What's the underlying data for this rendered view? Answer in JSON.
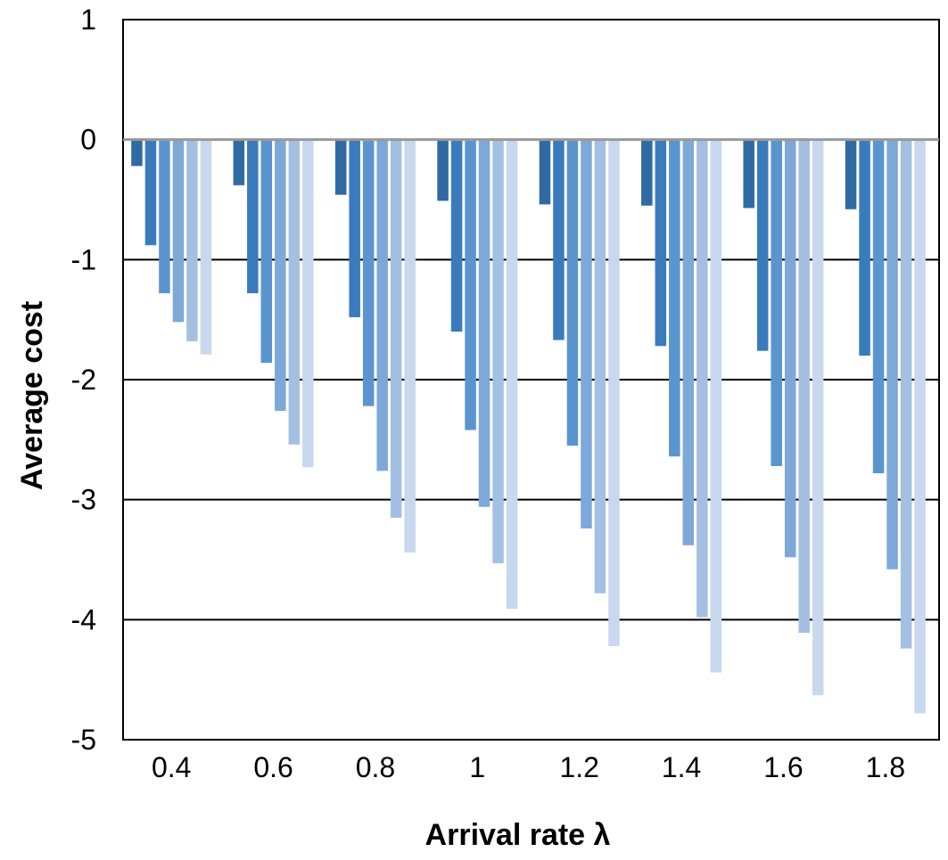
{
  "chart_data": {
    "type": "bar",
    "title": "",
    "xlabel": "Arrival rate λ",
    "ylabel": "Average cost",
    "ylim": [
      -5,
      1
    ],
    "yticks": [
      1,
      0,
      -1,
      -2,
      -3,
      -4,
      -5
    ],
    "grid": true,
    "legend": "none",
    "categories": [
      "0.4",
      "0.6",
      "0.8",
      "1",
      "1.2",
      "1.4",
      "1.6",
      "1.8"
    ],
    "series": [
      {
        "color": "#2f6aa3",
        "values": [
          -0.22,
          -0.38,
          -0.46,
          -0.51,
          -0.54,
          -0.55,
          -0.57,
          -0.58
        ]
      },
      {
        "color": "#3a7bbd",
        "values": [
          -0.88,
          -1.28,
          -1.48,
          -1.6,
          -1.67,
          -1.72,
          -1.76,
          -1.8
        ]
      },
      {
        "color": "#5b95cf",
        "values": [
          -1.28,
          -1.86,
          -2.22,
          -2.42,
          -2.55,
          -2.64,
          -2.72,
          -2.78
        ]
      },
      {
        "color": "#7ea8d8",
        "values": [
          -1.52,
          -2.26,
          -2.76,
          -3.06,
          -3.24,
          -3.38,
          -3.48,
          -3.58
        ]
      },
      {
        "color": "#a3c0e3",
        "values": [
          -1.68,
          -2.54,
          -3.15,
          -3.53,
          -3.78,
          -3.98,
          -4.11,
          -4.24
        ]
      },
      {
        "color": "#c8d8ee",
        "values": [
          -1.79,
          -2.73,
          -3.44,
          -3.91,
          -4.22,
          -4.44,
          -4.63,
          -4.78
        ]
      }
    ]
  }
}
